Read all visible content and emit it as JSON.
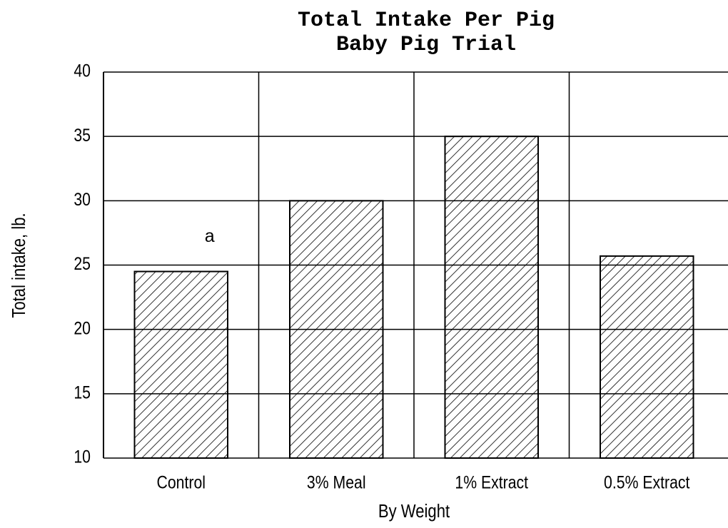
{
  "chart_data": {
    "type": "bar",
    "title": "Total Intake Per Pig",
    "subtitle": "Baby Pig Trial",
    "x_label": "By Weight",
    "y_label": "Total intake, lb.",
    "categories": [
      "Control",
      "3% Meal",
      "1% Extract",
      "0.5% Extract"
    ],
    "values": [
      24.5,
      30,
      35,
      25.7
    ],
    "color": "#000000",
    "ylim": [
      10,
      40
    ],
    "yticks": [
      10,
      15,
      20,
      25,
      30,
      35,
      40
    ],
    "grid": true,
    "annotations": [
      {
        "text": "a",
        "category": 0
      }
    ]
  }
}
